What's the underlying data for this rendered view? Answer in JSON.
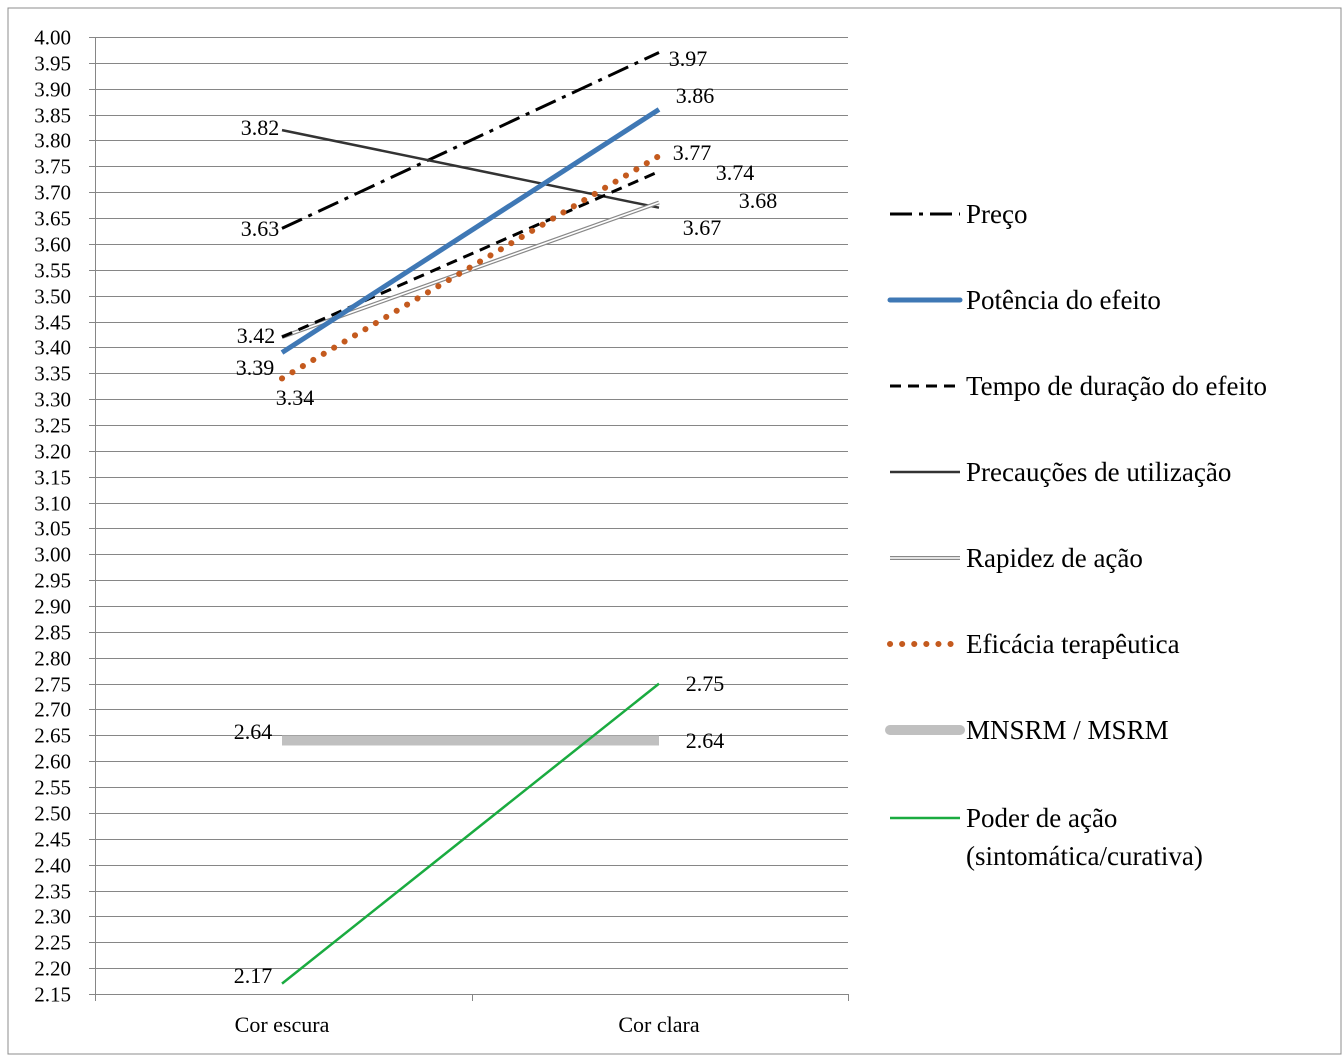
{
  "chart_data": {
    "type": "line",
    "title": "",
    "xlabel": "",
    "ylabel": "",
    "categories": [
      "Cor escura",
      "Cor clara"
    ],
    "ylim": [
      2.15,
      4.0
    ],
    "ytick_step": 0.05,
    "grid": true,
    "legend_position": "right",
    "series": [
      {
        "name": "Preço",
        "values": [
          3.63,
          3.97
        ],
        "color": "#000000",
        "style": "dash-dot",
        "labels": [
          "3.63",
          "3.97"
        ]
      },
      {
        "name": "Potência do efeito",
        "values": [
          3.39,
          3.86
        ],
        "color": "#3f78b5",
        "style": "solid-thick",
        "labels": [
          "3.39",
          "3.86"
        ]
      },
      {
        "name": "Tempo de duração do efeito",
        "values": [
          3.42,
          3.74
        ],
        "color": "#000000",
        "style": "dashed",
        "labels": [
          "3.42",
          "3.74"
        ]
      },
      {
        "name": "Precauções de utilização",
        "values": [
          3.82,
          3.67
        ],
        "color": "#333333",
        "style": "solid",
        "labels": [
          "3.82",
          "3.67"
        ]
      },
      {
        "name": "Rapidez de ação",
        "values": [
          3.42,
          3.68
        ],
        "color": "#888888",
        "style": "double",
        "labels": [
          "",
          "3.68"
        ]
      },
      {
        "name": "Eficácia terapêutica",
        "values": [
          3.34,
          3.77
        ],
        "color": "#c45a1e",
        "style": "dotted",
        "labels": [
          "3.34",
          "3.77"
        ]
      },
      {
        "name": "MNSRM / MSRM",
        "values": [
          2.64,
          2.64
        ],
        "color": "#c0c0c0",
        "style": "solid-thick",
        "labels": [
          "2.64",
          "2.64"
        ]
      },
      {
        "name": "Poder de ação (sintomática/curativa)",
        "name_lines": [
          "Poder de ação",
          "(sintomática/curativa)"
        ],
        "values": [
          2.17,
          2.75
        ],
        "color": "#1aab40",
        "style": "solid",
        "labels": [
          "2.17",
          "2.75"
        ]
      }
    ]
  }
}
